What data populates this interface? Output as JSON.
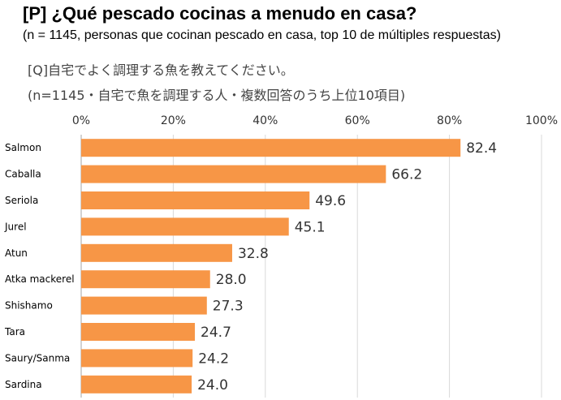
{
  "header": {
    "title": "[P] ¿Qué pescado cocinas a menudo en casa?",
    "subtitle": "(n = 1145, personas que cocinan pescado en casa, top 10 de múltiples respuestas)",
    "question_jp": "[Q]自宅でよく調理する魚を教えてください。",
    "note_jp": "(n=1145・自宅で魚を調理する人・複数回答のうち上位10項目)"
  },
  "colors": {
    "bar": "#f79646",
    "grid": "#d9d9d9",
    "axis": "#a6a6a6"
  },
  "chart_data": {
    "type": "bar",
    "orientation": "horizontal",
    "categories": [
      "Salmon",
      "Caballa",
      "Seriola",
      "Jurel",
      "Atun",
      "Atka mackerel",
      "Shishamo",
      "Tara",
      "Saury/Sanma",
      "Sardina"
    ],
    "values": [
      82.4,
      66.2,
      49.6,
      45.1,
      32.8,
      28.0,
      27.3,
      24.7,
      24.2,
      24.0
    ],
    "value_labels": [
      "82.4",
      "66.2",
      "49.6",
      "45.1",
      "32.8",
      "28.0",
      "27.3",
      "24.7",
      "24.2",
      "24.0"
    ],
    "xlim": [
      0,
      100
    ],
    "xticks": [
      "0%",
      "20%",
      "40%",
      "60%",
      "80%",
      "100%"
    ],
    "grid": true,
    "legend": "none"
  }
}
